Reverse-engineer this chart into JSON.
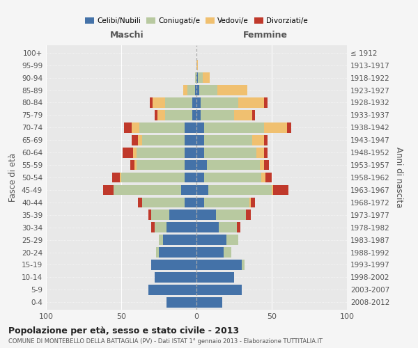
{
  "age_groups": [
    "100+",
    "95-99",
    "90-94",
    "85-89",
    "80-84",
    "75-79",
    "70-74",
    "65-69",
    "60-64",
    "55-59",
    "50-54",
    "45-49",
    "40-44",
    "35-39",
    "30-34",
    "25-29",
    "20-24",
    "15-19",
    "10-14",
    "5-9",
    "0-4"
  ],
  "birth_years": [
    "≤ 1912",
    "1913-1917",
    "1918-1922",
    "1923-1927",
    "1928-1932",
    "1933-1937",
    "1938-1942",
    "1943-1947",
    "1948-1952",
    "1953-1957",
    "1958-1962",
    "1963-1967",
    "1968-1972",
    "1973-1977",
    "1978-1982",
    "1983-1987",
    "1988-1992",
    "1993-1997",
    "1998-2002",
    "2003-2007",
    "2008-2012"
  ],
  "colors": {
    "celibe": "#4472a8",
    "coniugato": "#b8c9a0",
    "vedovo": "#f0c070",
    "divorziato": "#c0392b"
  },
  "maschi": {
    "celibe": [
      0,
      0,
      0,
      1,
      3,
      3,
      8,
      8,
      8,
      8,
      8,
      10,
      8,
      18,
      20,
      22,
      25,
      30,
      28,
      32,
      20
    ],
    "coniugato": [
      0,
      0,
      1,
      5,
      18,
      18,
      30,
      28,
      32,
      32,
      42,
      45,
      28,
      12,
      8,
      3,
      2,
      0,
      0,
      0,
      0
    ],
    "vedovo": [
      0,
      0,
      0,
      3,
      8,
      5,
      5,
      3,
      2,
      1,
      1,
      0,
      0,
      0,
      0,
      0,
      0,
      0,
      0,
      0,
      0
    ],
    "divorziato": [
      0,
      0,
      0,
      0,
      2,
      2,
      5,
      4,
      7,
      3,
      5,
      7,
      3,
      2,
      2,
      0,
      0,
      0,
      0,
      0,
      0
    ]
  },
  "femmine": {
    "celibe": [
      0,
      0,
      1,
      2,
      3,
      3,
      5,
      5,
      5,
      7,
      5,
      8,
      5,
      13,
      15,
      20,
      18,
      30,
      25,
      30,
      17
    ],
    "coniugato": [
      0,
      0,
      3,
      12,
      25,
      22,
      40,
      32,
      35,
      35,
      38,
      42,
      30,
      20,
      12,
      8,
      5,
      2,
      0,
      0,
      0
    ],
    "vedovo": [
      0,
      1,
      5,
      20,
      17,
      12,
      15,
      8,
      5,
      3,
      3,
      1,
      1,
      0,
      0,
      0,
      0,
      0,
      0,
      0,
      0
    ],
    "divorziato": [
      0,
      0,
      0,
      0,
      2,
      2,
      3,
      2,
      2,
      3,
      4,
      10,
      3,
      3,
      2,
      0,
      0,
      0,
      0,
      0,
      0
    ]
  },
  "xlim": 100,
  "title": "Popolazione per età, sesso e stato civile - 2013",
  "subtitle": "COMUNE DI MONTEBELLO DELLA BATTAGLIA (PV) - Dati ISTAT 1° gennaio 2013 - Elaborazione TUTTITALIA.IT",
  "ylabel_left": "Fasce di età",
  "ylabel_right": "Anni di nascita",
  "xlabel_maschi": "Maschi",
  "xlabel_femmine": "Femmine",
  "bg_color": "#f5f5f5",
  "plot_bg": "#e8e8e8",
  "legend": [
    "Celibi/Nubili",
    "Coniugati/e",
    "Vedovi/e",
    "Divorziati/e"
  ]
}
